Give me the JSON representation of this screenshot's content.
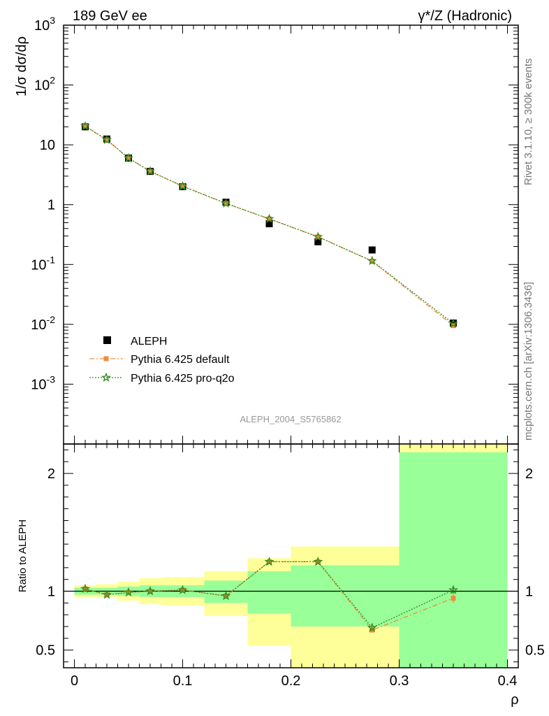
{
  "header": {
    "left": "189 GeV ee",
    "right": "γ*/Z (Hadronic)"
  },
  "side_text": {
    "top": "Rivet 3.1.10, ≥ 300k events",
    "bottom": "mcplots.cern.ch [arXiv:1306.3436]"
  },
  "watermark": "ALEPH_2004_S5765862",
  "colors": {
    "data": "#000000",
    "default": "#f28a3c",
    "proq2o": "#2e8b1e",
    "band_yellow": "#ffff99",
    "band_green": "#99ff99"
  },
  "chart_data": [
    {
      "type": "scatter",
      "ylabel": "1/σ dσ/dρ",
      "xlabel": "",
      "yscale": "log",
      "xlim": [
        -0.01,
        0.41
      ],
      "ylim": [
        0.0001,
        1000
      ],
      "y_ticks": [
        {
          "v": 1000,
          "label": "10^3"
        },
        {
          "v": 100,
          "label": "10^2"
        },
        {
          "v": 10,
          "label": "10"
        },
        {
          "v": 1,
          "label": "1"
        },
        {
          "v": 0.1,
          "label": "10^-1"
        },
        {
          "v": 0.01,
          "label": "10^-2"
        },
        {
          "v": 0.001,
          "label": "10^-3"
        }
      ],
      "legend": {
        "position": "lower-left",
        "entries": [
          "ALEPH",
          "Pythia 6.425 default",
          "Pythia 6.425 pro-q2o"
        ]
      },
      "series": [
        {
          "name": "ALEPH",
          "x": [
            0.01,
            0.03,
            0.05,
            0.07,
            0.1,
            0.14,
            0.18,
            0.225,
            0.275,
            0.35
          ],
          "y": [
            20.0,
            12.5,
            6.0,
            3.6,
            2.0,
            1.1,
            0.48,
            0.24,
            0.175,
            0.0105
          ]
        },
        {
          "name": "Pythia 6.425 default",
          "x": [
            0.01,
            0.03,
            0.05,
            0.07,
            0.1,
            0.14,
            0.18,
            0.225,
            0.275,
            0.35
          ],
          "y": [
            20.5,
            12.1,
            6.0,
            3.6,
            2.05,
            1.05,
            0.58,
            0.29,
            0.113,
            0.0095
          ]
        },
        {
          "name": "Pythia 6.425 pro-q2o",
          "x": [
            0.01,
            0.03,
            0.05,
            0.07,
            0.1,
            0.14,
            0.18,
            0.225,
            0.275,
            0.35
          ],
          "y": [
            20.5,
            12.1,
            6.0,
            3.62,
            2.03,
            1.05,
            0.58,
            0.29,
            0.115,
            0.0103
          ]
        }
      ]
    },
    {
      "type": "line",
      "xlabel": "ρ",
      "ylabel": "Ratio to ALEPH",
      "xlim": [
        -0.01,
        0.41
      ],
      "ylim": [
        0.35,
        2.25
      ],
      "x_ticks": [
        0,
        0.1,
        0.2,
        0.3,
        0.4
      ],
      "x_tick_labels": [
        "0",
        "0.1",
        "0.2",
        "0.3",
        "0.4"
      ],
      "y_ticks": [
        0.5,
        1,
        2
      ],
      "y_tick_labels": [
        "0.5",
        "1",
        "2"
      ],
      "bands": [
        {
          "x0": 0.0,
          "x1": 0.02,
          "stat": [
            0.97,
            1.03
          ],
          "total": [
            0.95,
            1.05
          ]
        },
        {
          "x0": 0.02,
          "x1": 0.04,
          "stat": [
            0.97,
            1.03
          ],
          "total": [
            0.95,
            1.06
          ]
        },
        {
          "x0": 0.04,
          "x1": 0.06,
          "stat": [
            0.96,
            1.04
          ],
          "total": [
            0.92,
            1.08
          ]
        },
        {
          "x0": 0.06,
          "x1": 0.08,
          "stat": [
            0.95,
            1.05
          ],
          "total": [
            0.89,
            1.11
          ]
        },
        {
          "x0": 0.08,
          "x1": 0.12,
          "stat": [
            0.95,
            1.05
          ],
          "total": [
            0.88,
            1.12
          ]
        },
        {
          "x0": 0.12,
          "x1": 0.16,
          "stat": [
            0.9,
            1.09
          ],
          "total": [
            0.79,
            1.17
          ]
        },
        {
          "x0": 0.16,
          "x1": 0.2,
          "stat": [
            0.81,
            1.17
          ],
          "total": [
            0.54,
            1.28
          ]
        },
        {
          "x0": 0.2,
          "x1": 0.3,
          "stat": [
            0.7,
            1.22
          ],
          "total": [
            0.35,
            1.38
          ]
        },
        {
          "x0": 0.3,
          "x1": 0.4,
          "stat": [
            0.35,
            2.18
          ],
          "total": [
            0.35,
            2.25
          ]
        }
      ],
      "series": [
        {
          "name": "Pythia 6.425 default",
          "x": [
            0.01,
            0.03,
            0.05,
            0.07,
            0.1,
            0.14,
            0.18,
            0.225,
            0.275,
            0.35
          ],
          "y": [
            1.02,
            0.97,
            0.99,
            1.0,
            1.01,
            0.96,
            1.25,
            1.25,
            0.67,
            0.94
          ],
          "err": [
            0.01,
            0.01,
            0.01,
            0.01,
            0.01,
            0.01,
            0.01,
            0.01,
            0.01,
            0.04
          ]
        },
        {
          "name": "Pythia 6.425 pro-q2o",
          "x": [
            0.01,
            0.03,
            0.05,
            0.07,
            0.1,
            0.14,
            0.18,
            0.225,
            0.275,
            0.35
          ],
          "y": [
            1.02,
            0.97,
            0.99,
            1.0,
            1.01,
            0.96,
            1.25,
            1.25,
            0.69,
            1.01
          ],
          "err": [
            0.01,
            0.01,
            0.01,
            0.01,
            0.01,
            0.01,
            0.01,
            0.01,
            0.01,
            0.03
          ]
        }
      ]
    }
  ]
}
